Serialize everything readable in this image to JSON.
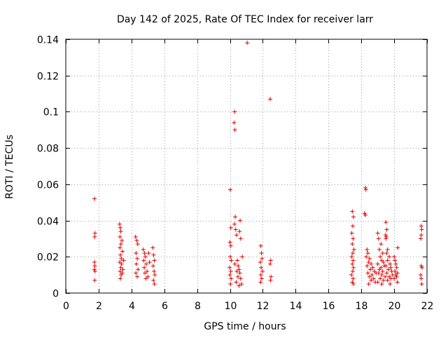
{
  "chart_data": {
    "type": "scatter",
    "title": "Day 142 of 2025, Rate Of TEC Index for receiver larr",
    "xlabel": "GPS time / hours",
    "ylabel": "ROTI / TECUs",
    "xlim": [
      0,
      22
    ],
    "ylim": [
      0,
      0.14
    ],
    "x_ticks": [
      0,
      2,
      4,
      6,
      8,
      10,
      12,
      14,
      16,
      18,
      20,
      22
    ],
    "x_tick_labels": [
      "0",
      "2",
      "4",
      "6",
      "8",
      "10",
      "12",
      "14",
      "16",
      "18",
      "20",
      "22"
    ],
    "y_ticks": [
      0,
      0.02,
      0.04,
      0.06,
      0.08,
      0.1,
      0.12,
      0.14
    ],
    "y_tick_labels": [
      "0",
      "0.02",
      "0.04",
      "0.06",
      "0.08",
      "0.1",
      "0.12",
      "0.14"
    ],
    "grid": true,
    "marker": "plus",
    "color": "#e00000",
    "series": [
      {
        "name": "ROTI",
        "points": [
          [
            1.75,
            0.052
          ],
          [
            1.78,
            0.033
          ],
          [
            1.76,
            0.031
          ],
          [
            1.75,
            0.017
          ],
          [
            1.77,
            0.015
          ],
          [
            1.74,
            0.013
          ],
          [
            1.78,
            0.012
          ],
          [
            1.76,
            0.007
          ],
          [
            3.28,
            0.038
          ],
          [
            3.32,
            0.036
          ],
          [
            3.35,
            0.034
          ],
          [
            3.3,
            0.031
          ],
          [
            3.42,
            0.029
          ],
          [
            3.36,
            0.027
          ],
          [
            3.3,
            0.025
          ],
          [
            3.45,
            0.023
          ],
          [
            3.33,
            0.021
          ],
          [
            3.38,
            0.019
          ],
          [
            3.29,
            0.017
          ],
          [
            3.4,
            0.016
          ],
          [
            3.35,
            0.014
          ],
          [
            3.31,
            0.012
          ],
          [
            3.44,
            0.011
          ],
          [
            3.37,
            0.01
          ],
          [
            3.33,
            0.008
          ],
          [
            3.48,
            0.013
          ],
          [
            3.52,
            0.018
          ],
          [
            4.25,
            0.031
          ],
          [
            4.32,
            0.029
          ],
          [
            4.38,
            0.027
          ],
          [
            4.28,
            0.022
          ],
          [
            4.35,
            0.019
          ],
          [
            4.3,
            0.016
          ],
          [
            4.4,
            0.013
          ],
          [
            4.27,
            0.011
          ],
          [
            4.35,
            0.009
          ],
          [
            4.72,
            0.024
          ],
          [
            4.8,
            0.022
          ],
          [
            4.85,
            0.02
          ],
          [
            4.75,
            0.018
          ],
          [
            4.9,
            0.016
          ],
          [
            4.78,
            0.014
          ],
          [
            4.95,
            0.012
          ],
          [
            4.82,
            0.011
          ],
          [
            5.0,
            0.009
          ],
          [
            4.88,
            0.008
          ],
          [
            5.05,
            0.022
          ],
          [
            5.1,
            0.017
          ],
          [
            5.3,
            0.025
          ],
          [
            5.35,
            0.021
          ],
          [
            5.4,
            0.018
          ],
          [
            5.32,
            0.015
          ],
          [
            5.38,
            0.012
          ],
          [
            5.42,
            0.01
          ],
          [
            5.34,
            0.007
          ],
          [
            5.4,
            0.005
          ],
          [
            10.02,
            0.057
          ],
          [
            10.05,
            0.036
          ],
          [
            10.0,
            0.028
          ],
          [
            10.05,
            0.026
          ],
          [
            10.02,
            0.02
          ],
          [
            10.08,
            0.018
          ],
          [
            9.98,
            0.014
          ],
          [
            10.05,
            0.012
          ],
          [
            10.0,
            0.01
          ],
          [
            10.07,
            0.008
          ],
          [
            10.03,
            0.005
          ],
          [
            10.28,
            0.1
          ],
          [
            10.25,
            0.094
          ],
          [
            10.3,
            0.09
          ],
          [
            10.32,
            0.042
          ],
          [
            10.28,
            0.038
          ],
          [
            10.35,
            0.035
          ],
          [
            10.4,
            0.032
          ],
          [
            10.45,
            0.018
          ],
          [
            10.3,
            0.016
          ],
          [
            10.5,
            0.015
          ],
          [
            10.55,
            0.013
          ],
          [
            10.42,
            0.012
          ],
          [
            10.6,
            0.011
          ],
          [
            10.48,
            0.009
          ],
          [
            10.65,
            0.008
          ],
          [
            10.38,
            0.006
          ],
          [
            10.7,
            0.005
          ],
          [
            10.55,
            0.004
          ],
          [
            10.62,
            0.04
          ],
          [
            10.58,
            0.034
          ],
          [
            10.65,
            0.03
          ],
          [
            10.75,
            0.02
          ],
          [
            11.05,
            0.138
          ],
          [
            11.88,
            0.026
          ],
          [
            11.92,
            0.022
          ],
          [
            11.95,
            0.019
          ],
          [
            11.85,
            0.017
          ],
          [
            11.9,
            0.014
          ],
          [
            11.98,
            0.012
          ],
          [
            11.88,
            0.01
          ],
          [
            11.93,
            0.008
          ],
          [
            11.87,
            0.006
          ],
          [
            12.45,
            0.107
          ],
          [
            12.48,
            0.018
          ],
          [
            12.45,
            0.016
          ],
          [
            12.5,
            0.009
          ],
          [
            12.47,
            0.007
          ],
          [
            17.45,
            0.045
          ],
          [
            17.52,
            0.042
          ],
          [
            17.48,
            0.037
          ],
          [
            17.42,
            0.033
          ],
          [
            17.5,
            0.03
          ],
          [
            17.45,
            0.027
          ],
          [
            17.55,
            0.024
          ],
          [
            17.48,
            0.022
          ],
          [
            17.42,
            0.02
          ],
          [
            17.5,
            0.018
          ],
          [
            17.45,
            0.016
          ],
          [
            17.52,
            0.014
          ],
          [
            17.48,
            0.012
          ],
          [
            17.4,
            0.01
          ],
          [
            17.5,
            0.008
          ],
          [
            17.45,
            0.006
          ],
          [
            17.52,
            0.005
          ],
          [
            18.25,
            0.058
          ],
          [
            18.28,
            0.057
          ],
          [
            18.2,
            0.044
          ],
          [
            18.25,
            0.043
          ],
          [
            18.35,
            0.024
          ],
          [
            18.4,
            0.022
          ],
          [
            18.3,
            0.02
          ],
          [
            18.5,
            0.019
          ],
          [
            18.45,
            0.017
          ],
          [
            18.6,
            0.016
          ],
          [
            18.35,
            0.015
          ],
          [
            18.7,
            0.014
          ],
          [
            18.55,
            0.013
          ],
          [
            18.8,
            0.012
          ],
          [
            18.4,
            0.011
          ],
          [
            18.9,
            0.011
          ],
          [
            18.65,
            0.01
          ],
          [
            18.5,
            0.009
          ],
          [
            18.75,
            0.008
          ],
          [
            18.6,
            0.007
          ],
          [
            18.45,
            0.005
          ],
          [
            18.85,
            0.006
          ],
          [
            19.0,
            0.033
          ],
          [
            19.05,
            0.03
          ],
          [
            19.2,
            0.027
          ],
          [
            19.1,
            0.024
          ],
          [
            19.3,
            0.022
          ],
          [
            19.15,
            0.02
          ],
          [
            19.25,
            0.018
          ],
          [
            19.35,
            0.017
          ],
          [
            19.0,
            0.016
          ],
          [
            19.4,
            0.015
          ],
          [
            19.2,
            0.014
          ],
          [
            19.1,
            0.013
          ],
          [
            19.3,
            0.012
          ],
          [
            19.05,
            0.011
          ],
          [
            19.25,
            0.01
          ],
          [
            19.45,
            0.009
          ],
          [
            19.15,
            0.008
          ],
          [
            19.35,
            0.007
          ],
          [
            19.0,
            0.006
          ],
          [
            19.25,
            0.005
          ],
          [
            19.5,
            0.039
          ],
          [
            19.55,
            0.035
          ],
          [
            19.48,
            0.032
          ],
          [
            19.52,
            0.031
          ],
          [
            19.5,
            0.03
          ],
          [
            19.6,
            0.024
          ],
          [
            19.55,
            0.022
          ],
          [
            19.7,
            0.02
          ],
          [
            19.6,
            0.018
          ],
          [
            19.75,
            0.016
          ],
          [
            19.5,
            0.015
          ],
          [
            19.8,
            0.014
          ],
          [
            19.65,
            0.013
          ],
          [
            19.85,
            0.012
          ],
          [
            19.55,
            0.011
          ],
          [
            19.9,
            0.01
          ],
          [
            19.7,
            0.009
          ],
          [
            19.8,
            0.008
          ],
          [
            19.6,
            0.007
          ],
          [
            19.75,
            0.005
          ],
          [
            20.0,
            0.02
          ],
          [
            20.05,
            0.018
          ],
          [
            20.1,
            0.016
          ],
          [
            20.15,
            0.014
          ],
          [
            20.05,
            0.012
          ],
          [
            20.2,
            0.011
          ],
          [
            20.1,
            0.01
          ],
          [
            20.15,
            0.009
          ],
          [
            20.0,
            0.008
          ],
          [
            20.2,
            0.006
          ],
          [
            20.22,
            0.025
          ],
          [
            21.65,
            0.037
          ],
          [
            21.68,
            0.035
          ],
          [
            21.65,
            0.032
          ],
          [
            21.62,
            0.03
          ],
          [
            21.65,
            0.015
          ],
          [
            21.7,
            0.014
          ],
          [
            21.62,
            0.01
          ],
          [
            21.65,
            0.008
          ],
          [
            21.68,
            0.005
          ]
        ]
      }
    ]
  }
}
